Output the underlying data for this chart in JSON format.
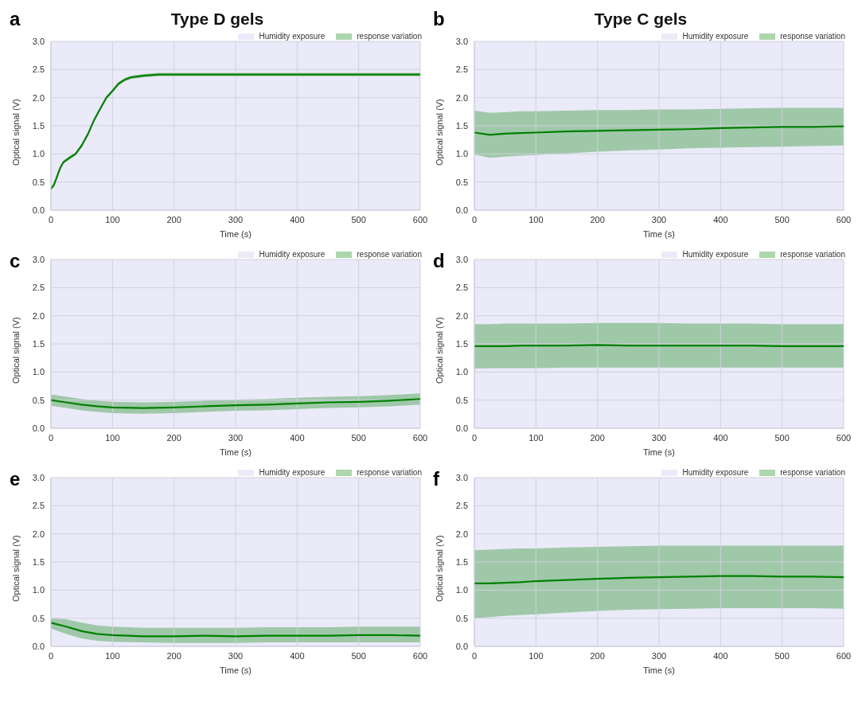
{
  "chart_data": [
    {
      "type": "line",
      "title": "Type D gels",
      "annotations": [
        "a"
      ],
      "xlabel": "Time (s)",
      "ylabel": "Optical signal (V)",
      "xlim": [
        0,
        600
      ],
      "xticks": [
        0,
        100,
        200,
        300,
        400,
        500,
        600
      ],
      "ylim": [
        0,
        3
      ],
      "yticks": [
        {
          "value": 0,
          "label": "0.0"
        },
        0.5,
        {
          "value": 1,
          "label": "1.0"
        },
        1.5,
        {
          "value": 2,
          "label": "2.0"
        },
        2.5,
        {
          "value": 3,
          "label": "3.0"
        }
      ],
      "grid": true,
      "legend": "top right",
      "bands": [
        {
          "axis": "x",
          "from": 0,
          "to": 600,
          "label": "Humidity exposure",
          "color": "#eaeaf8"
        }
      ],
      "x": [
        0,
        5,
        10,
        15,
        20,
        30,
        40,
        50,
        60,
        70,
        80,
        90,
        100,
        110,
        120,
        130,
        150,
        175,
        200,
        250,
        300,
        350,
        400,
        450,
        500,
        550,
        600
      ],
      "series": [
        {
          "name": "response variation",
          "color": "#008000",
          "values": [
            0.38,
            0.45,
            0.6,
            0.75,
            0.85,
            0.93,
            1.0,
            1.15,
            1.35,
            1.6,
            1.8,
            2.0,
            2.12,
            2.25,
            2.32,
            2.36,
            2.39,
            2.41,
            2.41,
            2.41,
            2.41,
            2.41,
            2.41,
            2.41,
            2.41,
            2.41,
            2.41
          ],
          "lower": [
            0.35,
            0.42,
            0.57,
            0.72,
            0.82,
            0.9,
            0.97,
            1.12,
            1.32,
            1.57,
            1.77,
            1.97,
            2.09,
            2.22,
            2.29,
            2.33,
            2.36,
            2.38,
            2.38,
            2.38,
            2.38,
            2.38,
            2.38,
            2.38,
            2.38,
            2.38,
            2.38
          ],
          "upper": [
            0.41,
            0.48,
            0.63,
            0.78,
            0.88,
            0.96,
            1.03,
            1.18,
            1.38,
            1.63,
            1.83,
            2.03,
            2.15,
            2.28,
            2.35,
            2.39,
            2.42,
            2.44,
            2.44,
            2.44,
            2.44,
            2.44,
            2.44,
            2.44,
            2.44,
            2.44,
            2.44
          ]
        }
      ]
    },
    {
      "type": "line",
      "title": "Type C gels",
      "annotations": [
        "b"
      ],
      "xlabel": "Time (s)",
      "ylabel": "Optical signal (V)",
      "xlim": [
        0,
        600
      ],
      "xticks": [
        0,
        100,
        200,
        300,
        400,
        500,
        600
      ],
      "ylim": [
        0,
        3
      ],
      "yticks": [
        {
          "value": 0,
          "label": "0.0"
        },
        0.5,
        {
          "value": 1,
          "label": "1.0"
        },
        1.5,
        {
          "value": 2,
          "label": "2.0"
        },
        2.5,
        {
          "value": 3,
          "label": "3.0"
        }
      ],
      "grid": true,
      "legend": "top right",
      "bands": [
        {
          "axis": "x",
          "from": 0,
          "to": 600,
          "label": "Humidity exposure",
          "color": "#eaeaf8"
        }
      ],
      "x": [
        0,
        25,
        50,
        75,
        100,
        150,
        200,
        250,
        300,
        350,
        400,
        450,
        500,
        550,
        600
      ],
      "series": [
        {
          "name": "response variation",
          "color": "#008000",
          "values": [
            1.38,
            1.34,
            1.36,
            1.37,
            1.38,
            1.4,
            1.41,
            1.42,
            1.43,
            1.44,
            1.46,
            1.47,
            1.48,
            1.48,
            1.49
          ],
          "lower": [
            0.99,
            0.93,
            0.95,
            0.97,
            0.98,
            1.01,
            1.04,
            1.06,
            1.08,
            1.1,
            1.11,
            1.12,
            1.13,
            1.14,
            1.15
          ],
          "upper": [
            1.77,
            1.73,
            1.74,
            1.76,
            1.76,
            1.77,
            1.78,
            1.78,
            1.79,
            1.79,
            1.8,
            1.81,
            1.82,
            1.82,
            1.82
          ]
        }
      ]
    },
    {
      "type": "line",
      "annotations": [
        "c"
      ],
      "xlabel": "Time (s)",
      "ylabel": "Optical signal (V)",
      "xlim": [
        0,
        600
      ],
      "xticks": [
        0,
        100,
        200,
        300,
        400,
        500,
        600
      ],
      "ylim": [
        0,
        3
      ],
      "yticks": [
        {
          "value": 0,
          "label": "0.0"
        },
        0.5,
        {
          "value": 1,
          "label": "1.0"
        },
        1.5,
        {
          "value": 2,
          "label": "2.0"
        },
        2.5,
        {
          "value": 3,
          "label": "3.0"
        }
      ],
      "grid": true,
      "legend": "top right",
      "bands": [
        {
          "axis": "x",
          "from": 0,
          "to": 600,
          "label": "Humidity exposure",
          "color": "#eaeaf8"
        }
      ],
      "x": [
        0,
        25,
        50,
        75,
        100,
        150,
        200,
        250,
        300,
        350,
        400,
        450,
        500,
        550,
        600
      ],
      "series": [
        {
          "name": "response variation",
          "color": "#008000",
          "values": [
            0.5,
            0.46,
            0.42,
            0.39,
            0.37,
            0.36,
            0.37,
            0.39,
            0.41,
            0.42,
            0.44,
            0.46,
            0.47,
            0.49,
            0.52
          ],
          "lower": [
            0.4,
            0.36,
            0.32,
            0.29,
            0.27,
            0.26,
            0.27,
            0.29,
            0.31,
            0.32,
            0.34,
            0.36,
            0.37,
            0.39,
            0.42
          ],
          "upper": [
            0.6,
            0.56,
            0.52,
            0.49,
            0.47,
            0.46,
            0.47,
            0.49,
            0.51,
            0.52,
            0.54,
            0.56,
            0.57,
            0.59,
            0.62
          ]
        }
      ]
    },
    {
      "type": "line",
      "annotations": [
        "d"
      ],
      "xlabel": "Time (s)",
      "ylabel": "Optical signal (V)",
      "xlim": [
        0,
        600
      ],
      "xticks": [
        0,
        100,
        200,
        300,
        400,
        500,
        600
      ],
      "ylim": [
        0,
        3
      ],
      "yticks": [
        {
          "value": 0,
          "label": "0.0"
        },
        0.5,
        {
          "value": 1,
          "label": "1.0"
        },
        1.5,
        {
          "value": 2,
          "label": "2.0"
        },
        2.5,
        {
          "value": 3,
          "label": "3.0"
        }
      ],
      "grid": true,
      "legend": "top right",
      "bands": [
        {
          "axis": "x",
          "from": 0,
          "to": 600,
          "label": "Humidity exposure",
          "color": "#eaeaf8"
        }
      ],
      "x": [
        0,
        25,
        50,
        75,
        100,
        150,
        200,
        250,
        300,
        350,
        400,
        450,
        500,
        550,
        600
      ],
      "series": [
        {
          "name": "response variation",
          "color": "#008000",
          "values": [
            1.46,
            1.46,
            1.46,
            1.47,
            1.47,
            1.47,
            1.48,
            1.47,
            1.47,
            1.47,
            1.47,
            1.47,
            1.46,
            1.46,
            1.46
          ],
          "lower": [
            1.06,
            1.07,
            1.07,
            1.07,
            1.07,
            1.08,
            1.08,
            1.08,
            1.08,
            1.08,
            1.08,
            1.08,
            1.08,
            1.08,
            1.08
          ],
          "upper": [
            1.85,
            1.85,
            1.86,
            1.86,
            1.86,
            1.86,
            1.87,
            1.87,
            1.87,
            1.86,
            1.86,
            1.86,
            1.85,
            1.85,
            1.85
          ]
        }
      ]
    },
    {
      "type": "line",
      "annotations": [
        "e"
      ],
      "xlabel": "Time (s)",
      "ylabel": "Optical signal (V)",
      "xlim": [
        0,
        600
      ],
      "xticks": [
        0,
        100,
        200,
        300,
        400,
        500,
        600
      ],
      "ylim": [
        0,
        3
      ],
      "yticks": [
        {
          "value": 0,
          "label": "0.0"
        },
        0.5,
        {
          "value": 1,
          "label": "1.0"
        },
        1.5,
        {
          "value": 2,
          "label": "2.0"
        },
        2.5,
        {
          "value": 3,
          "label": "3.0"
        }
      ],
      "grid": true,
      "legend": "top right",
      "bands": [
        {
          "axis": "x",
          "from": 0,
          "to": 600,
          "label": "Humidity exposure",
          "color": "#eaeaf8"
        }
      ],
      "x": [
        0,
        25,
        50,
        75,
        100,
        150,
        200,
        250,
        300,
        350,
        400,
        450,
        500,
        550,
        600
      ],
      "series": [
        {
          "name": "response variation",
          "color": "#008000",
          "values": [
            0.42,
            0.35,
            0.27,
            0.22,
            0.2,
            0.18,
            0.18,
            0.19,
            0.18,
            0.19,
            0.19,
            0.19,
            0.2,
            0.2,
            0.19
          ],
          "lower": [
            0.32,
            0.22,
            0.14,
            0.1,
            0.08,
            0.07,
            0.06,
            0.06,
            0.06,
            0.07,
            0.07,
            0.07,
            0.07,
            0.07,
            0.07
          ],
          "upper": [
            0.5,
            0.48,
            0.42,
            0.37,
            0.35,
            0.33,
            0.33,
            0.33,
            0.33,
            0.34,
            0.34,
            0.34,
            0.35,
            0.35,
            0.35
          ]
        }
      ]
    },
    {
      "type": "line",
      "annotations": [
        "f"
      ],
      "xlabel": "Time (s)",
      "ylabel": "Optical signal (V)",
      "xlim": [
        0,
        600
      ],
      "xticks": [
        0,
        100,
        200,
        300,
        400,
        500,
        600
      ],
      "ylim": [
        0,
        3
      ],
      "yticks": [
        {
          "value": 0,
          "label": "0.0"
        },
        0.5,
        {
          "value": 1,
          "label": "1.0"
        },
        1.5,
        {
          "value": 2,
          "label": "2.0"
        },
        2.5,
        {
          "value": 3,
          "label": "3.0"
        }
      ],
      "grid": true,
      "legend": "top right",
      "bands": [
        {
          "axis": "x",
          "from": 0,
          "to": 600,
          "label": "Humidity exposure",
          "color": "#eaeaf8"
        }
      ],
      "x": [
        0,
        25,
        50,
        75,
        100,
        150,
        200,
        250,
        300,
        350,
        400,
        450,
        500,
        550,
        600
      ],
      "series": [
        {
          "name": "response variation",
          "color": "#008000",
          "values": [
            1.12,
            1.12,
            1.13,
            1.14,
            1.16,
            1.18,
            1.2,
            1.22,
            1.23,
            1.24,
            1.25,
            1.25,
            1.24,
            1.24,
            1.23
          ],
          "lower": [
            0.5,
            0.52,
            0.54,
            0.56,
            0.57,
            0.6,
            0.63,
            0.65,
            0.66,
            0.67,
            0.68,
            0.68,
            0.68,
            0.68,
            0.67
          ],
          "upper": [
            1.71,
            1.72,
            1.73,
            1.74,
            1.74,
            1.76,
            1.77,
            1.78,
            1.79,
            1.79,
            1.79,
            1.79,
            1.79,
            1.79,
            1.79
          ]
        }
      ]
    }
  ]
}
